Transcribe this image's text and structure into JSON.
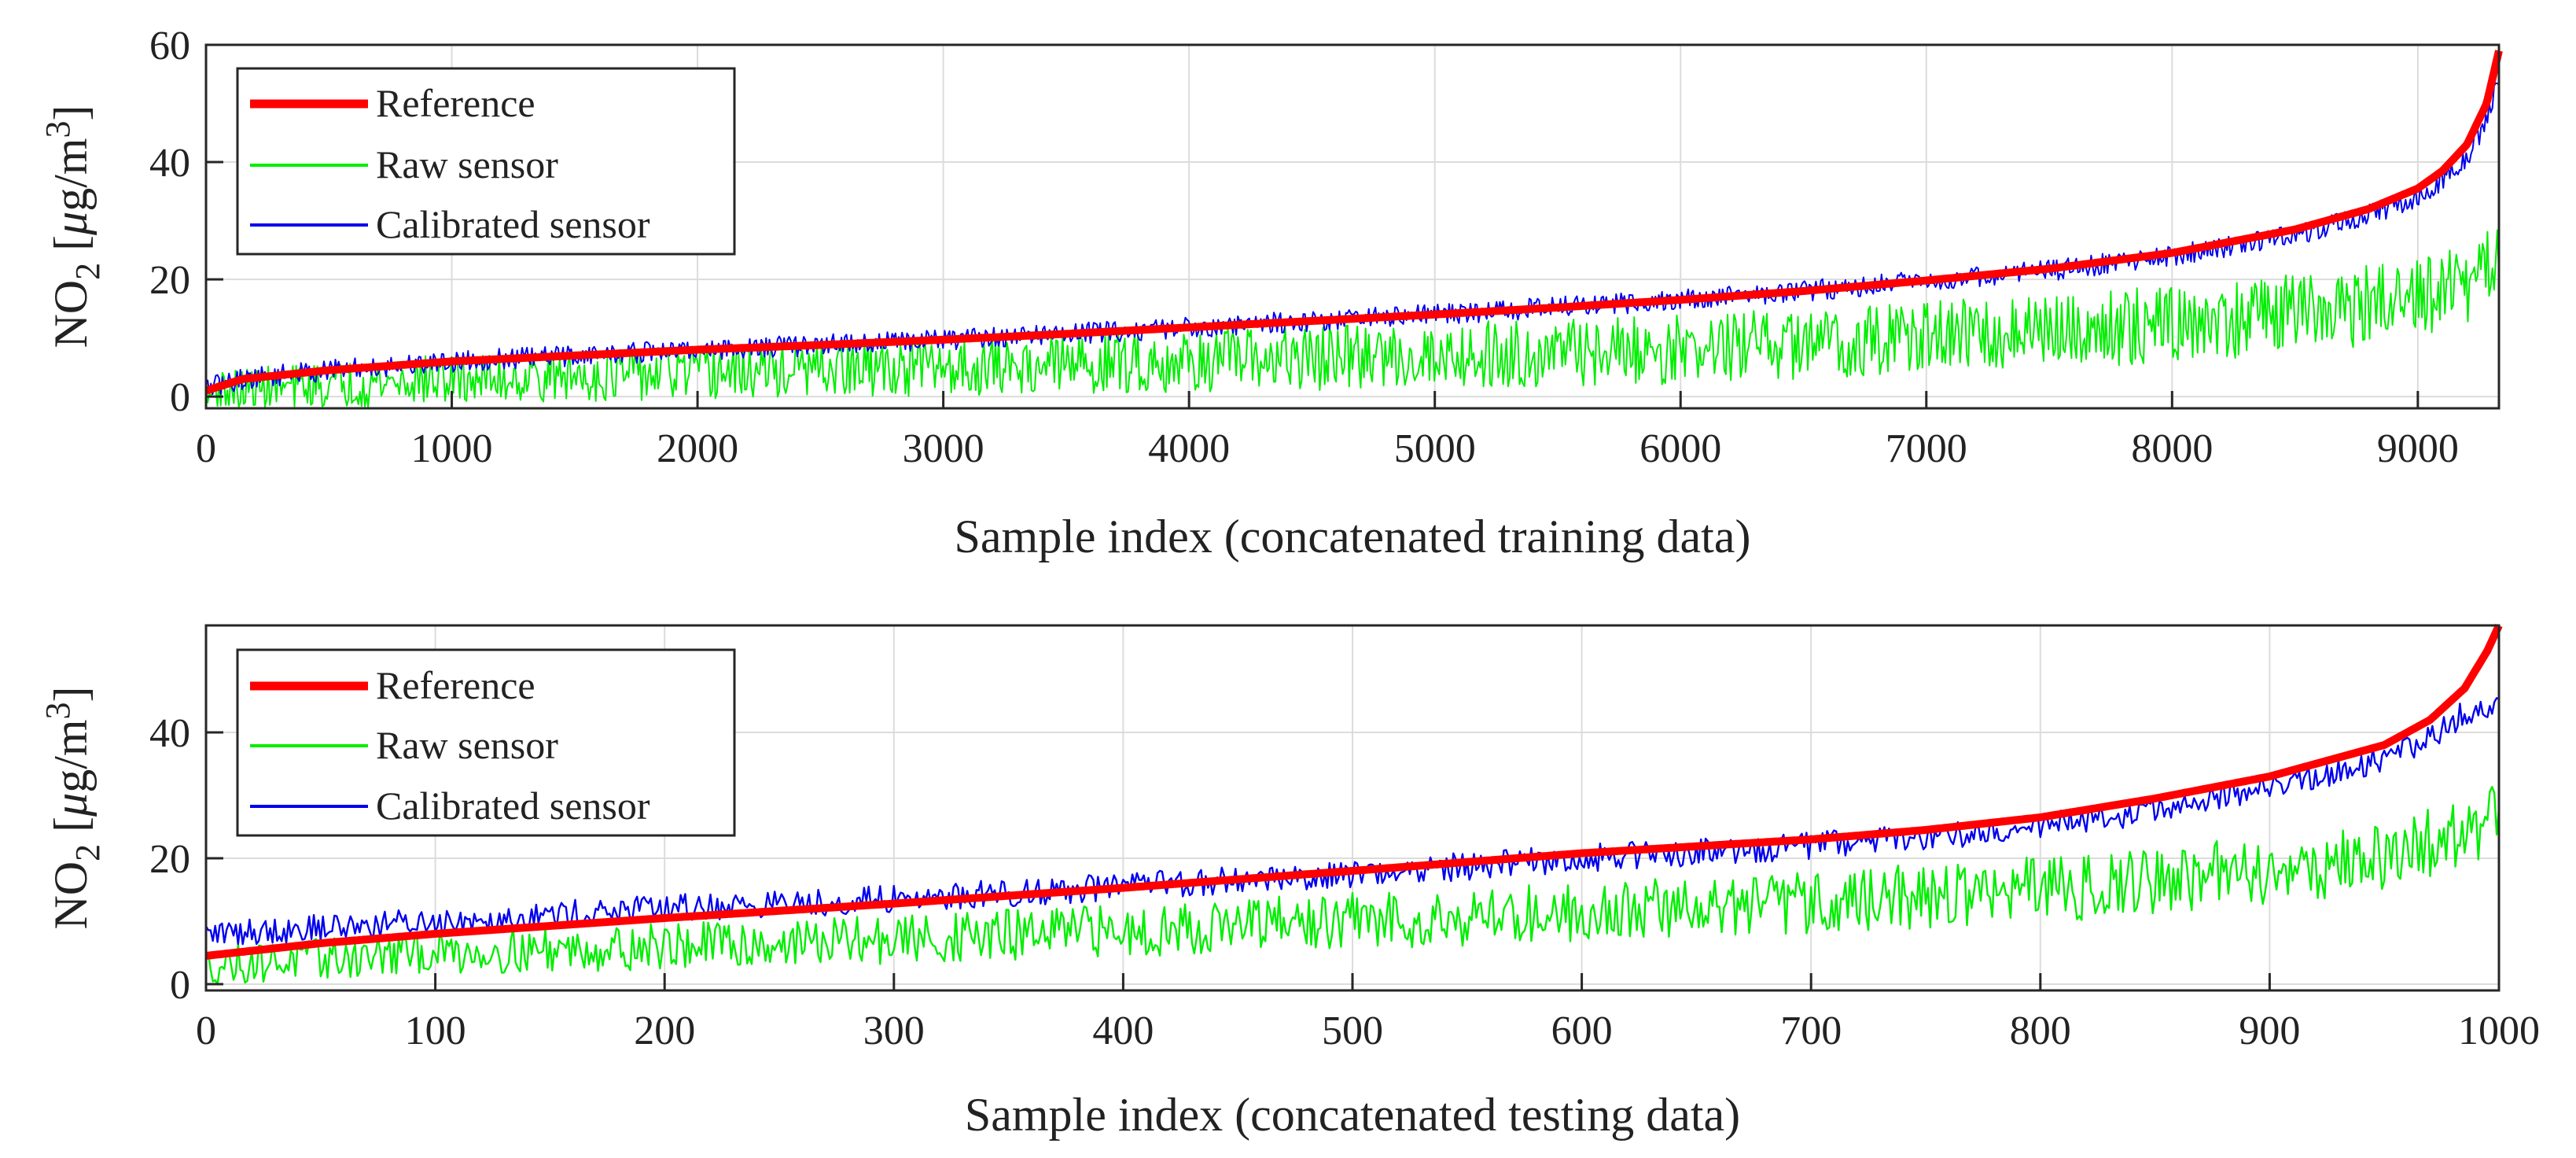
{
  "chart_data": [
    {
      "type": "line",
      "title": "",
      "xlabel": "Sample index (concatenated training data)",
      "ylabel_main": "NO",
      "ylabel_sub": "2",
      "ylabel_unit_prefix": " [",
      "ylabel_unit_mu": "μ",
      "ylabel_unit_mid": "g/m",
      "ylabel_unit_sup": "3",
      "ylabel_unit_suffix": "]",
      "xlim": [
        0,
        9330
      ],
      "ylim": [
        -2,
        60
      ],
      "xticks": [
        0,
        1000,
        2000,
        3000,
        4000,
        5000,
        6000,
        7000,
        8000,
        9000
      ],
      "xtick_labels": [
        "0",
        "1000",
        "2000",
        "3000",
        "4000",
        "5000",
        "6000",
        "7000",
        "8000",
        "9000"
      ],
      "yticks": [
        0,
        20,
        40,
        60
      ],
      "ytick_labels": [
        "0",
        "20",
        "40",
        "60"
      ],
      "grid": true,
      "legend_position": "top-left",
      "series": [
        {
          "name": "Reference",
          "color": "#ff0000",
          "x": [
            0,
            150,
            500,
            1000,
            1500,
            2000,
            2500,
            3000,
            3500,
            4000,
            4500,
            5000,
            5500,
            6000,
            6500,
            7000,
            7500,
            8000,
            8500,
            8800,
            9000,
            9100,
            9200,
            9280,
            9330
          ],
          "values": [
            1,
            3,
            4.5,
            6,
            7,
            8,
            8.8,
            9.7,
            10.7,
            11.8,
            12.9,
            14,
            15.2,
            16.5,
            18,
            19.8,
            21.8,
            24.5,
            28.5,
            32,
            35.5,
            38.5,
            43,
            50,
            59
          ]
        },
        {
          "name": "Raw sensor",
          "color": "#00ee00",
          "x": [
            0,
            500,
            1000,
            1500,
            2000,
            2500,
            3000,
            3500,
            4000,
            4500,
            5000,
            5500,
            6000,
            6500,
            7000,
            7500,
            8000,
            8500,
            9000,
            9200,
            9330
          ],
          "values": [
            0.5,
            2,
            3,
            3.5,
            4,
            4.5,
            5,
            5.5,
            6,
            6.5,
            7,
            7.5,
            8,
            9,
            10,
            11,
            12.5,
            14,
            16.5,
            19,
            23
          ]
        },
        {
          "name": "Calibrated sensor",
          "color": "#0000ee",
          "x": [
            0,
            150,
            500,
            1000,
            1500,
            2000,
            2500,
            3000,
            3500,
            4000,
            4500,
            5000,
            5500,
            6000,
            6500,
            7000,
            7500,
            8000,
            8500,
            8800,
            9000,
            9100,
            9200,
            9280,
            9330
          ],
          "values": [
            1.5,
            3,
            4.5,
            6,
            7,
            8,
            8.8,
            9.7,
            10.7,
            11.8,
            12.9,
            14,
            15.2,
            16.5,
            18,
            19.8,
            21.5,
            24,
            27.5,
            31,
            34,
            37,
            41,
            47,
            55
          ]
        }
      ]
    },
    {
      "type": "line",
      "title": "",
      "xlabel": "Sample index (concatenated testing data)",
      "ylabel_main": "NO",
      "ylabel_sub": "2",
      "ylabel_unit_prefix": " [",
      "ylabel_unit_mu": "μ",
      "ylabel_unit_mid": "g/m",
      "ylabel_unit_sup": "3",
      "ylabel_unit_suffix": "]",
      "xlim": [
        0,
        1000
      ],
      "ylim": [
        -1,
        57
      ],
      "xticks": [
        0,
        100,
        200,
        300,
        400,
        500,
        600,
        700,
        800,
        900,
        1000
      ],
      "xtick_labels": [
        "0",
        "100",
        "200",
        "300",
        "400",
        "500",
        "600",
        "700",
        "800",
        "900",
        "1000"
      ],
      "yticks": [
        0,
        20,
        40
      ],
      "ytick_labels": [
        "0",
        "20",
        "40"
      ],
      "grid": true,
      "legend_position": "top-left",
      "series": [
        {
          "name": "Reference",
          "color": "#ff0000",
          "x": [
            0,
            50,
            100,
            200,
            300,
            400,
            500,
            600,
            700,
            750,
            800,
            850,
            900,
            950,
            970,
            985,
            995,
            1000
          ],
          "values": [
            4.5,
            6.5,
            8,
            10.5,
            12.8,
            15.3,
            18,
            20.8,
            23,
            24.5,
            26.5,
            29.5,
            33,
            38,
            42,
            47,
            53,
            57
          ]
        },
        {
          "name": "Raw sensor",
          "color": "#00ee00",
          "x": [
            0,
            50,
            100,
            200,
            300,
            400,
            500,
            600,
            700,
            800,
            850,
            900,
            950,
            1000
          ],
          "values": [
            3,
            4,
            5,
            6,
            7,
            8.5,
            10,
            11.5,
            13,
            15,
            16.5,
            18,
            20,
            26
          ]
        },
        {
          "name": "Calibrated sensor",
          "color": "#0000ee",
          "x": [
            0,
            50,
            100,
            200,
            300,
            400,
            500,
            600,
            700,
            750,
            800,
            850,
            900,
            950,
            970,
            985,
            1000
          ],
          "values": [
            8,
            9,
            10,
            12,
            13.5,
            15.5,
            17.5,
            20,
            22,
            23.5,
            25,
            27.5,
            31,
            36,
            39,
            43,
            45
          ]
        }
      ]
    }
  ]
}
